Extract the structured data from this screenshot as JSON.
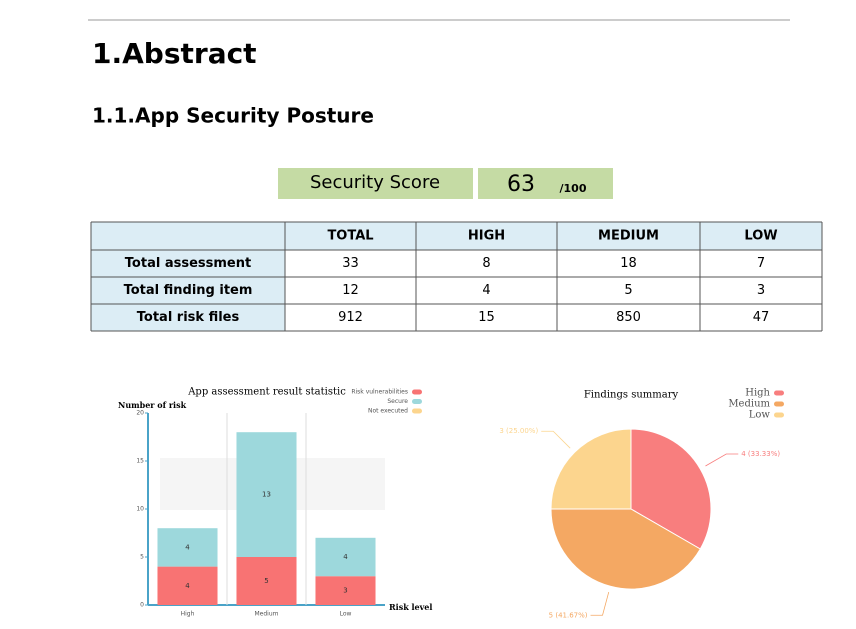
{
  "header": {
    "title": "1.Abstract",
    "subtitle": "1.1.App Security Posture"
  },
  "score": {
    "label": "Security Score",
    "value": 63,
    "max": "/100"
  },
  "table": {
    "columns": [
      "TOTAL",
      "HIGH",
      "MEDIUM",
      "LOW"
    ],
    "rows": [
      [
        "Total assessment",
        33,
        8,
        18,
        7
      ],
      [
        "Total finding item",
        12,
        4,
        5,
        3
      ],
      [
        "Total risk files",
        912,
        15,
        850,
        47
      ]
    ]
  },
  "chart_data": [
    {
      "type": "stacked_bar",
      "title": "App assessment result statistic",
      "y_label": "Number of risk",
      "x_label": "Risk level",
      "categories": [
        "High",
        "Medium",
        "Low"
      ],
      "series": [
        {
          "name": "Risk vulnerabilities",
          "color": "#f87373",
          "values": [
            4,
            5,
            3
          ]
        },
        {
          "name": "Secure",
          "color": "#9dd8dc",
          "values": [
            4,
            13,
            4
          ]
        },
        {
          "name": "Not executed",
          "color": "#fcd58e",
          "values": [
            0,
            0,
            0
          ]
        }
      ],
      "ylim": [
        0,
        20
      ],
      "yticks": [
        0,
        5,
        10,
        15,
        20
      ],
      "legend": "top-right"
    },
    {
      "type": "pie",
      "title": "Findings summary",
      "categories": [
        "High",
        "Medium",
        "Low"
      ],
      "values": [
        4,
        5,
        3
      ],
      "value_labels": [
        "4 (33.33%)",
        "5 (41.67%)",
        "3 (25.00%)"
      ],
      "colors": [
        "#f87e7e",
        "#f4a863",
        "#fcd58e"
      ],
      "legend": "top-right"
    }
  ]
}
